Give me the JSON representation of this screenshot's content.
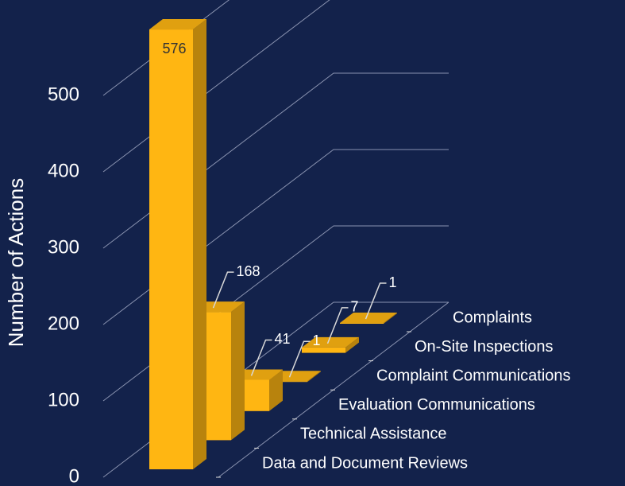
{
  "chart_data": {
    "type": "bar3d",
    "y_label": "Number of Actions",
    "categories": [
      "Data and Document Reviews",
      "Technical Assistance",
      "Evaluation Communications",
      "Complaint Communications",
      "On-Site Inspections",
      "Complaints"
    ],
    "values": [
      576,
      168,
      41,
      1,
      7,
      1
    ],
    "color": "#ffb612",
    "ylim": [
      0,
      600
    ],
    "yticks": [
      0,
      100,
      200,
      300,
      400,
      500
    ],
    "grid": true
  }
}
